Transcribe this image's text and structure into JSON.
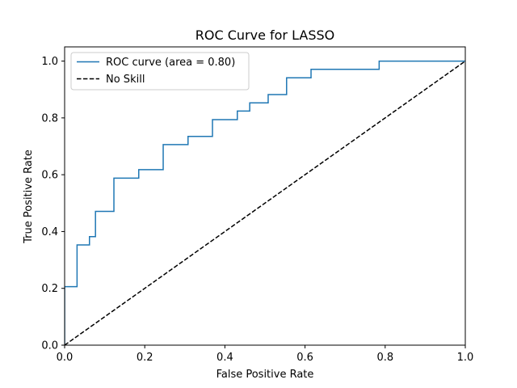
{
  "chart_data": {
    "type": "line",
    "title": "ROC Curve for LASSO",
    "xlabel": "False Positive Rate",
    "ylabel": "True Positive Rate",
    "xlim": [
      0.0,
      1.0
    ],
    "ylim": [
      0.0,
      1.05
    ],
    "xticks": [
      0.0,
      0.2,
      0.4,
      0.6,
      0.8,
      1.0
    ],
    "yticks": [
      0.0,
      0.2,
      0.4,
      0.6,
      0.8,
      1.0
    ],
    "xtick_labels": [
      "0.0",
      "0.2",
      "0.4",
      "0.6",
      "0.8",
      "1.0"
    ],
    "ytick_labels": [
      "0.0",
      "0.2",
      "0.4",
      "0.6",
      "0.8",
      "1.0"
    ],
    "grid": false,
    "legend_position": "top-left",
    "series": [
      {
        "name": "ROC curve (area = 0.80)",
        "color": "#1f77b4",
        "style": "solid",
        "x": [
          0.0,
          0.0,
          0.031,
          0.031,
          0.062,
          0.062,
          0.077,
          0.077,
          0.123,
          0.123,
          0.185,
          0.185,
          0.246,
          0.246,
          0.308,
          0.308,
          0.369,
          0.369,
          0.431,
          0.431,
          0.462,
          0.462,
          0.508,
          0.508,
          0.554,
          0.554,
          0.615,
          0.615,
          0.785,
          0.785,
          1.0
        ],
        "y": [
          0.0,
          0.206,
          0.206,
          0.353,
          0.353,
          0.382,
          0.382,
          0.471,
          0.471,
          0.588,
          0.588,
          0.618,
          0.618,
          0.706,
          0.706,
          0.735,
          0.735,
          0.794,
          0.794,
          0.824,
          0.824,
          0.853,
          0.853,
          0.882,
          0.882,
          0.941,
          0.941,
          0.971,
          0.971,
          1.0,
          1.0
        ]
      },
      {
        "name": "No Skill",
        "color": "#000000",
        "style": "dashed",
        "x": [
          0.0,
          1.0
        ],
        "y": [
          0.0,
          1.0
        ]
      }
    ]
  }
}
